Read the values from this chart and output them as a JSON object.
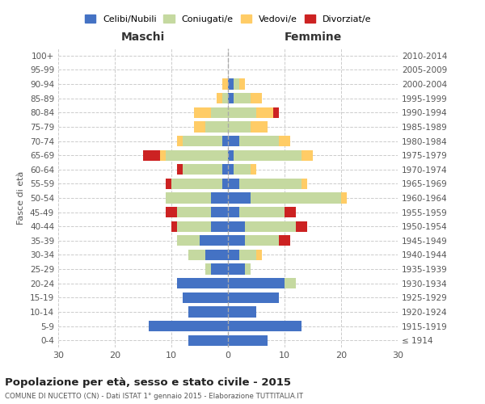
{
  "age_groups": [
    "100+",
    "95-99",
    "90-94",
    "85-89",
    "80-84",
    "75-79",
    "70-74",
    "65-69",
    "60-64",
    "55-59",
    "50-54",
    "45-49",
    "40-44",
    "35-39",
    "30-34",
    "25-29",
    "20-24",
    "15-19",
    "10-14",
    "5-9",
    "0-4"
  ],
  "birth_years": [
    "≤ 1914",
    "1915-1919",
    "1920-1924",
    "1925-1929",
    "1930-1934",
    "1935-1939",
    "1940-1944",
    "1945-1949",
    "1950-1954",
    "1955-1959",
    "1960-1964",
    "1965-1969",
    "1970-1974",
    "1975-1979",
    "1980-1984",
    "1985-1989",
    "1990-1994",
    "1995-1999",
    "2000-2004",
    "2005-2009",
    "2010-2014"
  ],
  "male_celibe": [
    0,
    0,
    0,
    0,
    0,
    0,
    1,
    0,
    1,
    1,
    3,
    3,
    3,
    5,
    4,
    3,
    9,
    8,
    7,
    14,
    7
  ],
  "male_coniugato": [
    0,
    0,
    0,
    1,
    3,
    4,
    7,
    11,
    7,
    9,
    8,
    6,
    6,
    4,
    3,
    1,
    0,
    0,
    0,
    0,
    0
  ],
  "male_vedovo": [
    0,
    0,
    1,
    1,
    3,
    2,
    1,
    1,
    0,
    0,
    0,
    0,
    0,
    0,
    0,
    0,
    0,
    0,
    0,
    0,
    0
  ],
  "male_divorziato": [
    0,
    0,
    0,
    0,
    0,
    0,
    0,
    3,
    1,
    1,
    0,
    2,
    1,
    0,
    0,
    0,
    0,
    0,
    0,
    0,
    0
  ],
  "female_celibe": [
    0,
    0,
    1,
    1,
    0,
    0,
    2,
    1,
    1,
    2,
    4,
    2,
    3,
    3,
    2,
    3,
    10,
    9,
    5,
    13,
    7
  ],
  "female_coniugato": [
    0,
    0,
    1,
    3,
    5,
    4,
    7,
    12,
    3,
    11,
    16,
    8,
    9,
    6,
    3,
    1,
    2,
    0,
    0,
    0,
    0
  ],
  "female_vedovo": [
    0,
    0,
    1,
    2,
    3,
    3,
    2,
    2,
    1,
    1,
    1,
    0,
    0,
    0,
    1,
    0,
    0,
    0,
    0,
    0,
    0
  ],
  "female_divorziato": [
    0,
    0,
    0,
    0,
    1,
    0,
    0,
    0,
    0,
    0,
    0,
    2,
    2,
    2,
    0,
    0,
    0,
    0,
    0,
    0,
    0
  ],
  "color_celibe": "#4472C4",
  "color_coniugato": "#C5D9A0",
  "color_vedovo": "#FFCC66",
  "color_divorziato": "#CC2222",
  "xlim": 30,
  "title": "Popolazione per età, sesso e stato civile - 2015",
  "subtitle": "COMUNE DI NUCETTO (CN) - Dati ISTAT 1° gennaio 2015 - Elaborazione TUTTITALIA.IT",
  "ylabel_left": "Fasce di età",
  "xlabel_maschi": "Maschi",
  "xlabel_femmine": "Femmine"
}
